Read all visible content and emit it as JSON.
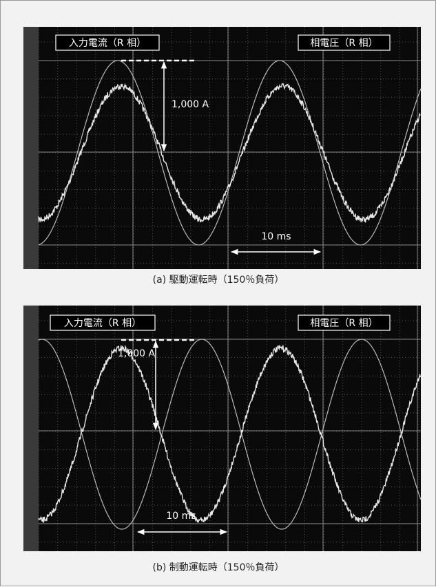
{
  "panels": [
    {
      "current_label": "入力電流（R 相）",
      "voltage_label": "相電圧（R 相）",
      "amplitude_label": "1,000 A",
      "time_label": "10 ms",
      "caption": "(a) 駆動運転時（150％負荷）"
    },
    {
      "current_label": "入力電流（R 相）",
      "voltage_label": "相電圧（R 相）",
      "amplitude_label": "1,000 A",
      "time_label": "10 ms",
      "caption": "(b) 制動運転時（150％負荷）"
    }
  ]
}
